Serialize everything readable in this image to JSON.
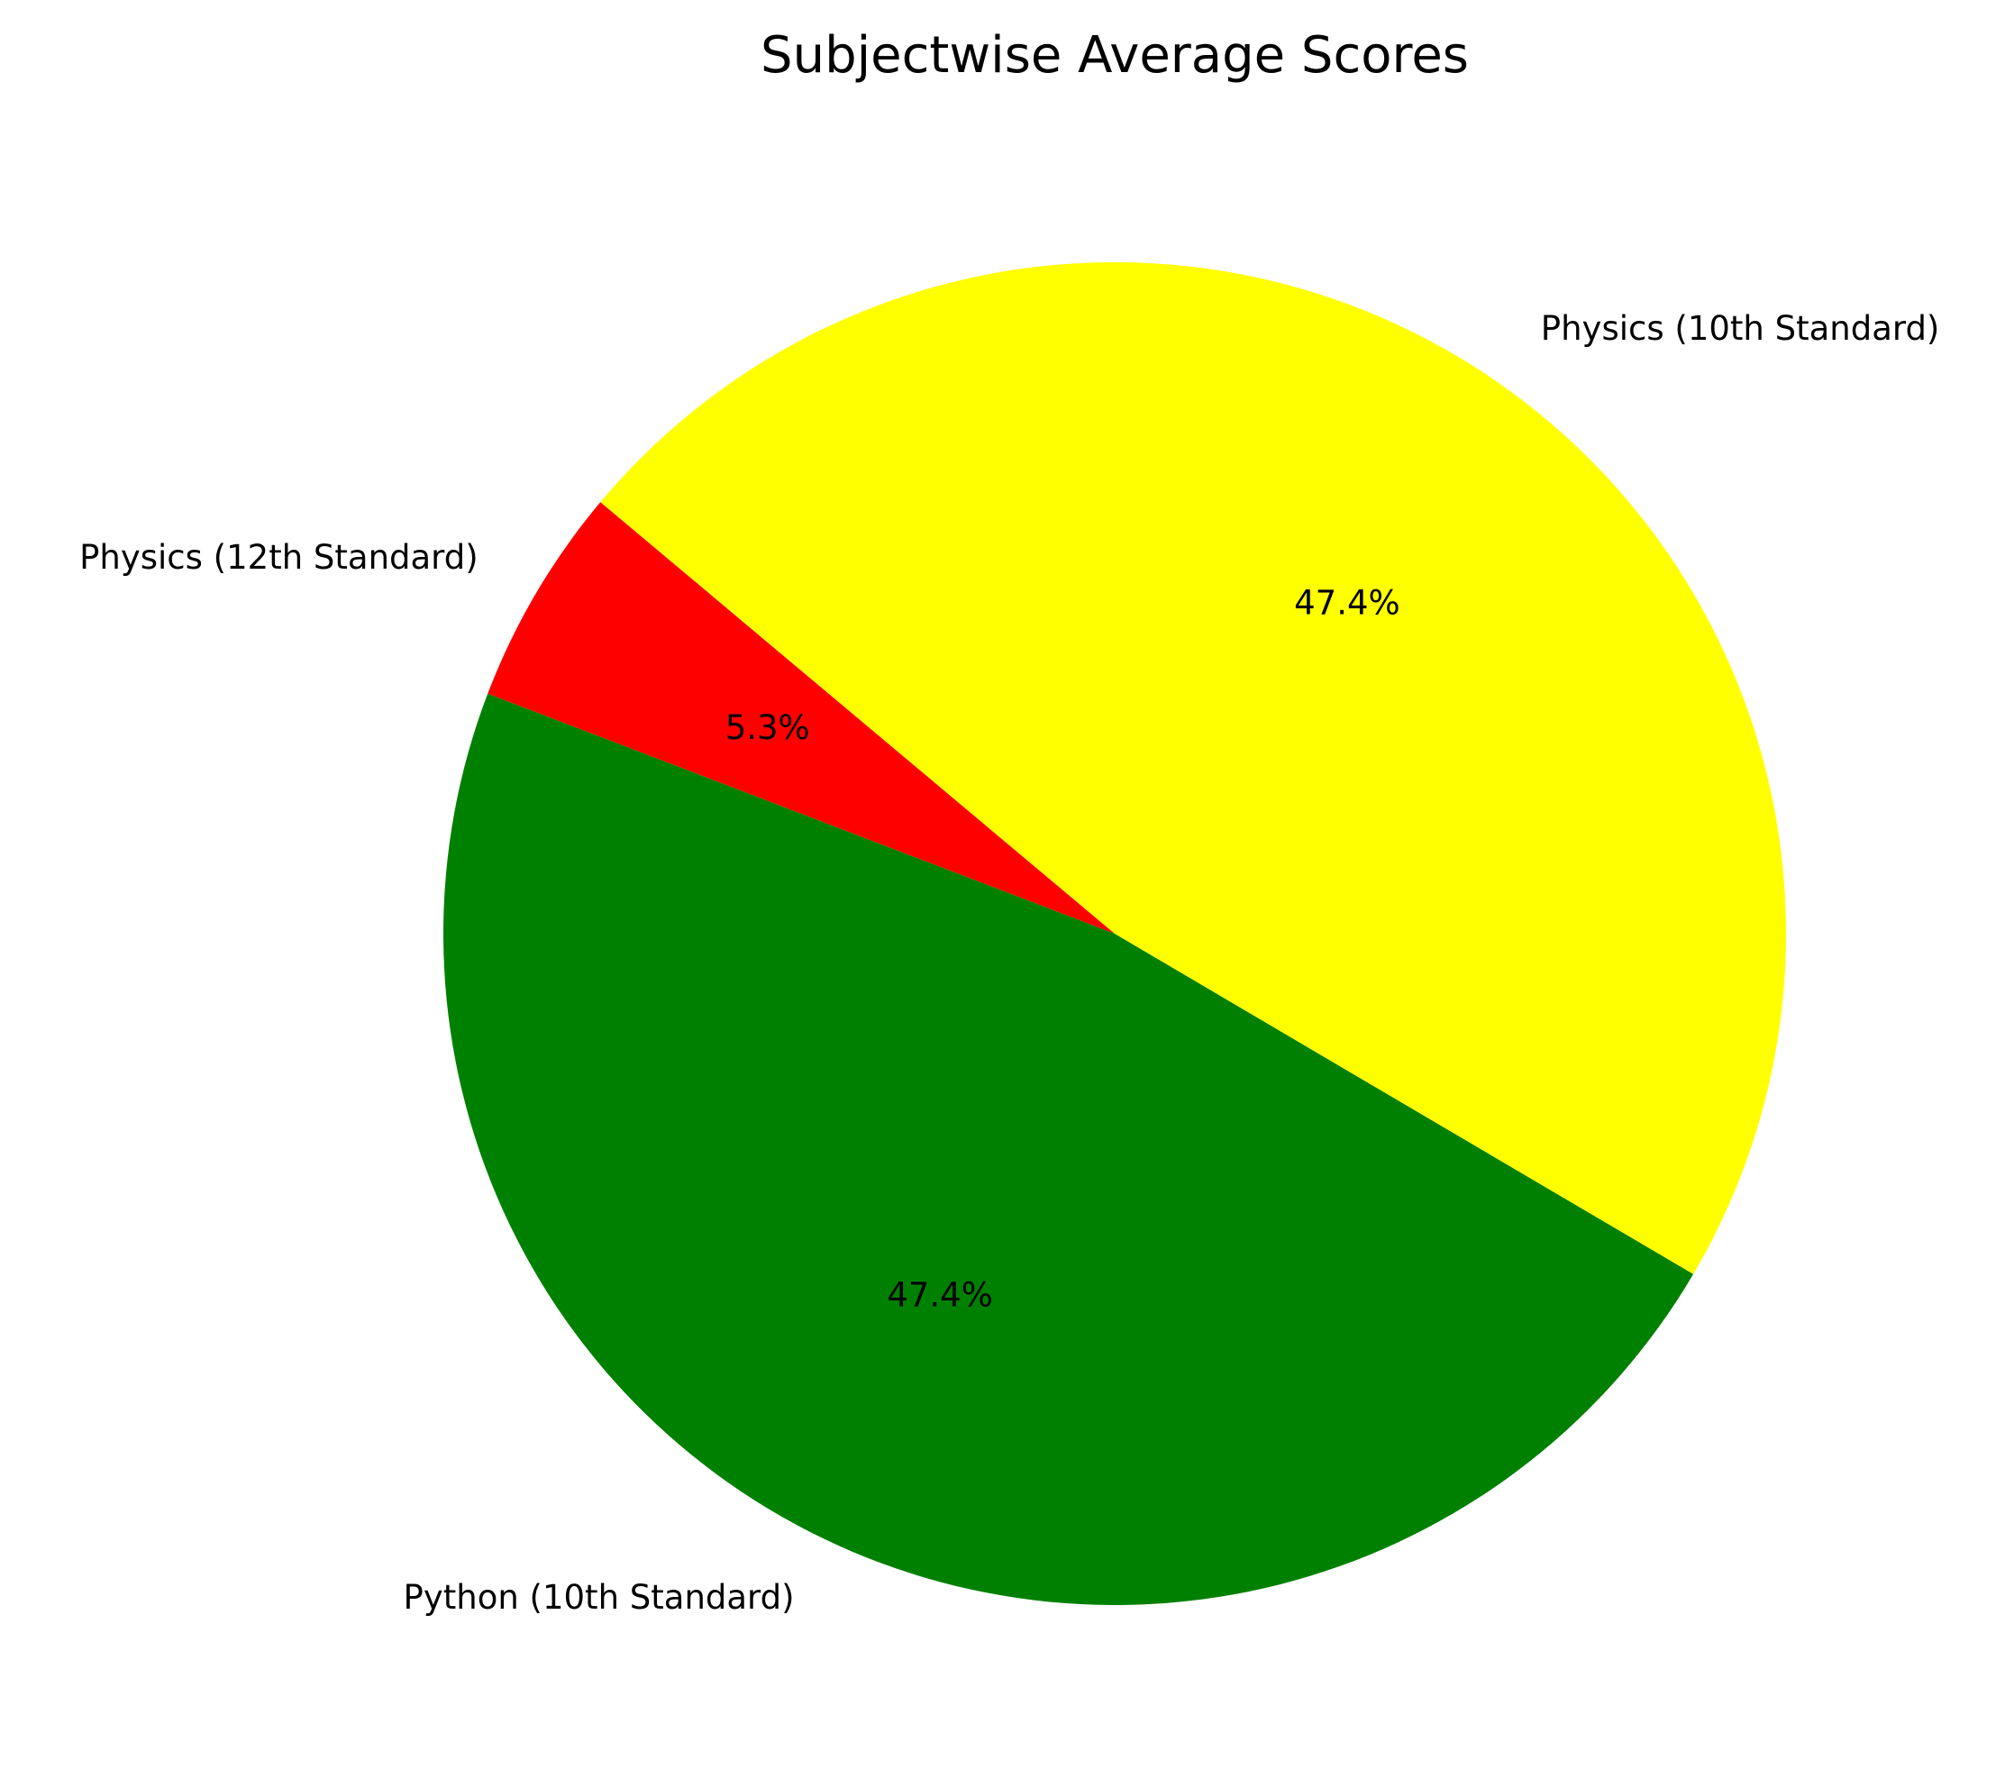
{
  "chart_data": {
    "type": "pie",
    "title": "Subjectwise Average Scores",
    "start_angle_deg": 140,
    "direction": "counterclockwise",
    "slices": [
      {
        "label": "Physics (12th Standard)",
        "value": 5.3,
        "pct_label": "5.3%",
        "color": "#ff0000"
      },
      {
        "label": "Python (10th Standard)",
        "value": 47.4,
        "pct_label": "47.4%",
        "color": "#008000"
      },
      {
        "label": "Physics (10th Standard)",
        "value": 47.4,
        "pct_label": "47.4%",
        "color": "#ffff00"
      }
    ]
  }
}
